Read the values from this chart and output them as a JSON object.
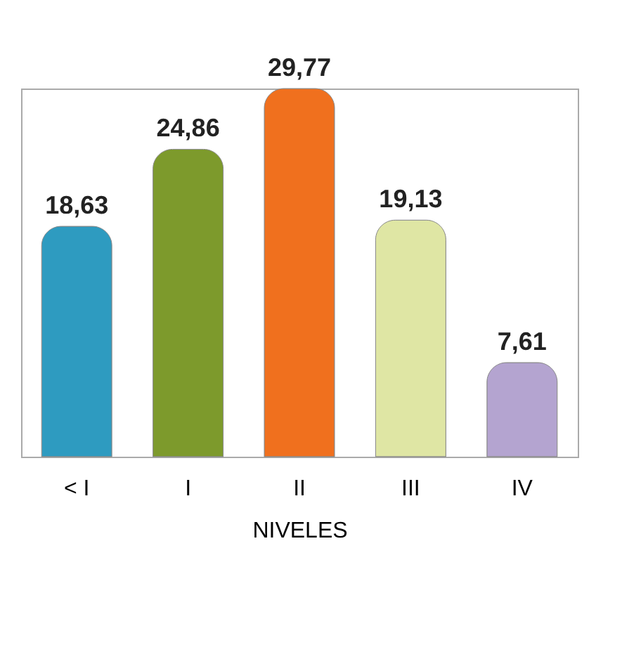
{
  "chart_data": {
    "type": "bar",
    "xlabel": "NIVELES",
    "categories": [
      "< I",
      "I",
      "II",
      "III",
      "IV"
    ],
    "values": [
      18.63,
      24.86,
      29.77,
      19.13,
      7.61
    ],
    "colors": [
      "#2e9bc0",
      "#7d9a2c",
      "#f0701e",
      "#dfe6a4",
      "#b4a4d0"
    ],
    "value_labels": [
      "18,63",
      "24,86",
      "29,77",
      "19,13",
      "7,61"
    ],
    "grid": false,
    "legend": false
  }
}
